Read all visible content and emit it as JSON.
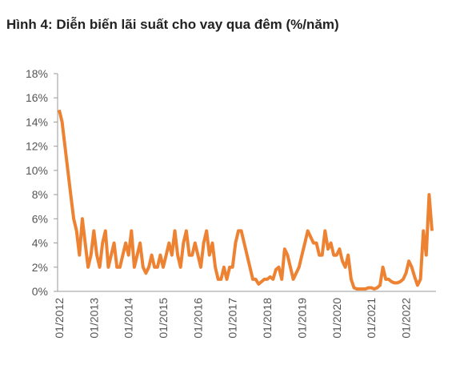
{
  "chart_data": {
    "type": "line",
    "title": "Hình 4: Diễn biến lãi suất cho vay qua đêm (%/năm)",
    "x": [
      "01/2012",
      "02/2012",
      "03/2012",
      "04/2012",
      "05/2012",
      "06/2012",
      "07/2012",
      "08/2012",
      "09/2012",
      "10/2012",
      "11/2012",
      "12/2012",
      "01/2013",
      "02/2013",
      "03/2013",
      "04/2013",
      "05/2013",
      "06/2013",
      "07/2013",
      "08/2013",
      "09/2013",
      "10/2013",
      "11/2013",
      "12/2013",
      "01/2014",
      "02/2014",
      "03/2014",
      "04/2014",
      "05/2014",
      "06/2014",
      "07/2014",
      "08/2014",
      "09/2014",
      "10/2014",
      "11/2014",
      "12/2014",
      "01/2015",
      "02/2015",
      "03/2015",
      "04/2015",
      "05/2015",
      "06/2015",
      "07/2015",
      "08/2015",
      "09/2015",
      "10/2015",
      "11/2015",
      "12/2015",
      "01/2016",
      "02/2016",
      "03/2016",
      "04/2016",
      "05/2016",
      "06/2016",
      "07/2016",
      "08/2016",
      "09/2016",
      "10/2016",
      "11/2016",
      "12/2016",
      "01/2017",
      "02/2017",
      "03/2017",
      "04/2017",
      "05/2017",
      "06/2017",
      "07/2017",
      "08/2017",
      "09/2017",
      "10/2017",
      "11/2017",
      "12/2017",
      "01/2018",
      "02/2018",
      "03/2018",
      "04/2018",
      "05/2018",
      "06/2018",
      "07/2018",
      "08/2018",
      "09/2018",
      "10/2018",
      "11/2018",
      "12/2018",
      "01/2019",
      "02/2019",
      "03/2019",
      "04/2019",
      "05/2019",
      "06/2019",
      "07/2019",
      "08/2019",
      "09/2019",
      "10/2019",
      "11/2019",
      "12/2019",
      "01/2020",
      "02/2020",
      "03/2020",
      "04/2020",
      "05/2020",
      "06/2020",
      "07/2020",
      "08/2020",
      "09/2020",
      "10/2020",
      "11/2020",
      "12/2020",
      "01/2021",
      "02/2021",
      "03/2021",
      "04/2021",
      "05/2021",
      "06/2021",
      "07/2021",
      "08/2021",
      "09/2021",
      "10/2021",
      "11/2021",
      "12/2021",
      "01/2022",
      "02/2022",
      "03/2022",
      "04/2022",
      "05/2022",
      "06/2022",
      "07/2022",
      "08/2022",
      "09/2022",
      "10/2022"
    ],
    "values": [
      15,
      14,
      12,
      10,
      8,
      6,
      5,
      3,
      6,
      4,
      2,
      3,
      5,
      3,
      2,
      4,
      5,
      2,
      3,
      4,
      2,
      2,
      3,
      4,
      3,
      5,
      2,
      3,
      4,
      2,
      1.5,
      2,
      3,
      2,
      2,
      3,
      2,
      3,
      4,
      3,
      5,
      3,
      2,
      4,
      5,
      3,
      3,
      4,
      3,
      2,
      4,
      5,
      3,
      4,
      2,
      1,
      1,
      2,
      1,
      2,
      2,
      4,
      5,
      5,
      4,
      3,
      2,
      1,
      1,
      0.6,
      0.8,
      1,
      1,
      1.2,
      1,
      1.8,
      2,
      1,
      3.5,
      3,
      2,
      1,
      1.5,
      2,
      3,
      4,
      5,
      4.5,
      4,
      4,
      3,
      3,
      5,
      3.5,
      4,
      3,
      3,
      3.5,
      2.5,
      2,
      3,
      1,
      0.3,
      0.2,
      0.2,
      0.2,
      0.2,
      0.3,
      0.3,
      0.2,
      0.3,
      0.5,
      2,
      1,
      1,
      0.8,
      0.7,
      0.7,
      0.8,
      1,
      1.5,
      2.5,
      2,
      1.2,
      0.5,
      1,
      5,
      3,
      8,
      5
    ],
    "color": "#ee8233",
    "xticks": [
      "01/2012",
      "01/2013",
      "01/2014",
      "01/2015",
      "01/2016",
      "01/2017",
      "01/2018",
      "01/2019",
      "01/2020",
      "01/2021",
      "01/2022"
    ],
    "ylim": [
      0,
      18
    ],
    "yticks": [
      {
        "value": 0,
        "label": "0%"
      },
      {
        "value": 2,
        "label": "2%"
      },
      {
        "value": 4,
        "label": "4%"
      },
      {
        "value": 6,
        "label": "6%"
      },
      {
        "value": 8,
        "label": "8%"
      },
      {
        "value": 10,
        "label": "10%"
      },
      {
        "value": 12,
        "label": "12%"
      },
      {
        "value": 14,
        "label": "14%"
      },
      {
        "value": 16,
        "label": "16%"
      },
      {
        "value": 18,
        "label": "18%"
      }
    ]
  }
}
